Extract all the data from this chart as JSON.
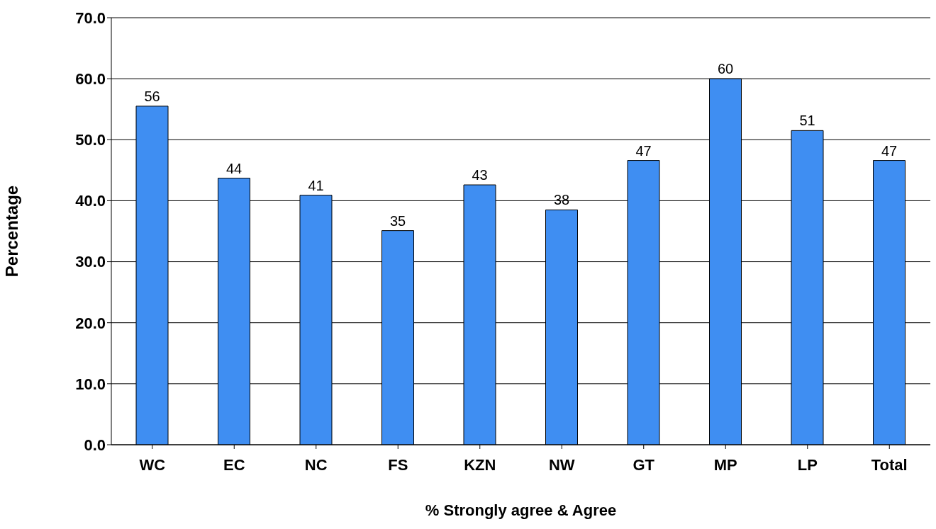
{
  "chart_data": {
    "type": "bar",
    "xlabel": "% Strongly agree & Agree",
    "ylabel": "Percentage",
    "categories": [
      "WC",
      "EC",
      "NC",
      "FS",
      "KZN",
      "NW",
      "GT",
      "MP",
      "LP",
      "Total"
    ],
    "values": [
      55.5,
      43.7,
      40.9,
      35.1,
      42.6,
      38.5,
      46.6,
      60.0,
      51.5,
      46.6
    ],
    "value_labels": [
      "56",
      "44",
      "41",
      "35",
      "43",
      "38",
      "47",
      "60",
      "51",
      "47"
    ],
    "color": "#3f8ef2",
    "ylim": [
      0,
      70
    ],
    "yticks": [
      {
        "value": 0,
        "label": "0.0"
      },
      {
        "value": 10,
        "label": "10.0"
      },
      {
        "value": 20,
        "label": "20.0"
      },
      {
        "value": 30,
        "label": "30.0"
      },
      {
        "value": 40,
        "label": "40.0"
      },
      {
        "value": 50,
        "label": "50.0"
      },
      {
        "value": 60,
        "label": "60.0"
      },
      {
        "value": 70,
        "label": "70.0"
      }
    ],
    "grid": "y"
  }
}
